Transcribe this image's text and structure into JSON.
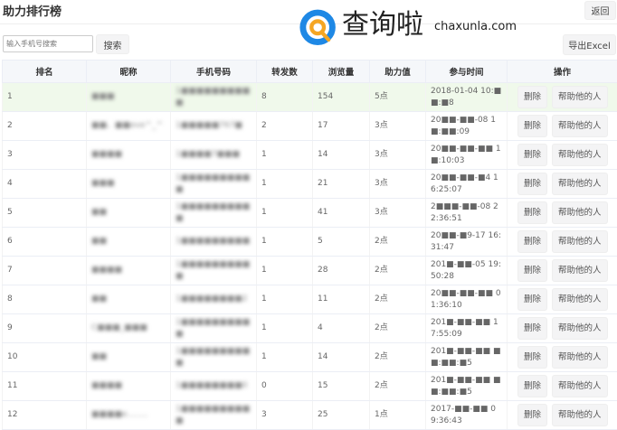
{
  "header": {
    "title": "助力排行榜",
    "back_label": "返回"
  },
  "toolbar": {
    "search_placeholder": "输入手机号搜索",
    "search_label": "搜索",
    "export_label": "导出Excel"
  },
  "table": {
    "columns": [
      "排名",
      "昵称",
      "手机号码",
      "转发数",
      "浏览量",
      "助力值",
      "参与时间",
      "操作"
    ],
    "actions": {
      "delete": "删除",
      "helpers": "帮助他的人"
    },
    "rows": [
      {
        "rank": "1",
        "nickname": "■■■",
        "phone": "1■■■■■■■■■■",
        "shares": "8",
        "views": "154",
        "power": "5点",
        "time": "2018-01-04 10:■■:■8"
      },
      {
        "rank": "2",
        "nickname": "■■、■■eve^_^",
        "phone": "1■■■■■767■",
        "shares": "2",
        "views": "17",
        "power": "3点",
        "time": "20■■-■■-08 1■:■■:09"
      },
      {
        "rank": "3",
        "nickname": "■■■■",
        "phone": "1■■■■7■■■",
        "shares": "1",
        "views": "14",
        "power": "3点",
        "time": "20■■-■■-■■ 1■:10:03"
      },
      {
        "rank": "4",
        "nickname": "■■■",
        "phone": "1■■■■■■■■■■",
        "shares": "1",
        "views": "21",
        "power": "3点",
        "time": "20■■-■■-■4 16:25:07"
      },
      {
        "rank": "5",
        "nickname": "■■",
        "phone": "1■■■■■■■■■■",
        "shares": "1",
        "views": "41",
        "power": "3点",
        "time": "2■■■-■■-08 22:36:51"
      },
      {
        "rank": "6",
        "nickname": "■■",
        "phone": "1■■■■■■■■■",
        "shares": "1",
        "views": "5",
        "power": "2点",
        "time": "20■■-■9-17 16:31:47"
      },
      {
        "rank": "7",
        "nickname": "■■■■",
        "phone": "1■■■■■■■■■■",
        "shares": "1",
        "views": "28",
        "power": "2点",
        "time": "201■-■■-05 19:50:28"
      },
      {
        "rank": "8",
        "nickname": "■■",
        "phone": "1■■■■■■■■2",
        "shares": "1",
        "views": "11",
        "power": "2点",
        "time": "20■■-■■-■■ 01:36:10"
      },
      {
        "rank": "9",
        "nickname": "C■■■_■■■",
        "phone": "1■■■■■■■■■■",
        "shares": "1",
        "views": "4",
        "power": "2点",
        "time": "201■-■■-■■ 17:55:09"
      },
      {
        "rank": "10",
        "nickname": "■■",
        "phone": "1■■■■■■■■■■",
        "shares": "1",
        "views": "14",
        "power": "2点",
        "time": "201■-■■-■■ ■■:■■:■5"
      },
      {
        "rank": "11",
        "nickname": "■■■■",
        "phone": "1■■■■■■■■0",
        "shares": "0",
        "views": "15",
        "power": "2点",
        "time": "201■-■■-■■ ■■:■■:■5"
      },
      {
        "rank": "12",
        "nickname": "■■■■e........",
        "phone": "1■■■■■■■■■■",
        "shares": "3",
        "views": "25",
        "power": "1点",
        "time": "2017-■■-■■ 09:36:43"
      }
    ]
  },
  "watermark": {
    "text": "查询啦",
    "domain": "chaxunla.com",
    "colors": {
      "ring": "#1e88e5",
      "accent": "#f5a623"
    }
  }
}
